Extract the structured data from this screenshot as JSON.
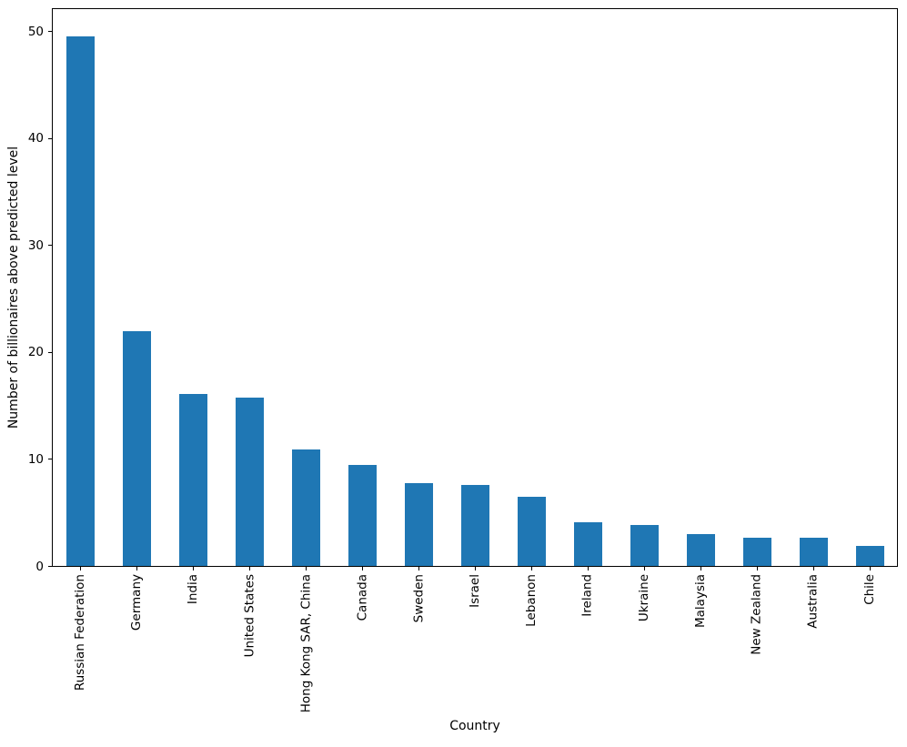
{
  "figure": {
    "background": "#ffffff"
  },
  "chart_data": {
    "type": "bar",
    "title": "",
    "xlabel": "Country",
    "ylabel": "Number of billionaires above predicted level",
    "categories": [
      "Russian Federation",
      "Germany",
      "India",
      "United States",
      "Hong Kong SAR, China",
      "Canada",
      "Sweden",
      "Israel",
      "Lebanon",
      "Ireland",
      "Ukraine",
      "Malaysia",
      "New Zealand",
      "Australia",
      "Chile"
    ],
    "values": [
      49.6,
      22.0,
      16.1,
      15.8,
      10.9,
      9.5,
      7.8,
      7.6,
      6.5,
      4.1,
      3.9,
      3.0,
      2.7,
      2.7,
      1.9
    ],
    "ylim": [
      0,
      52.2
    ],
    "yticks": [
      0,
      10,
      20,
      30,
      40,
      50
    ],
    "x_tick_rotation": 90,
    "bar_color": "#1f77b4",
    "axis_color": "#000000",
    "text_color": "#000000",
    "grid": false,
    "legend": null,
    "bar_width_fraction": 0.5
  }
}
